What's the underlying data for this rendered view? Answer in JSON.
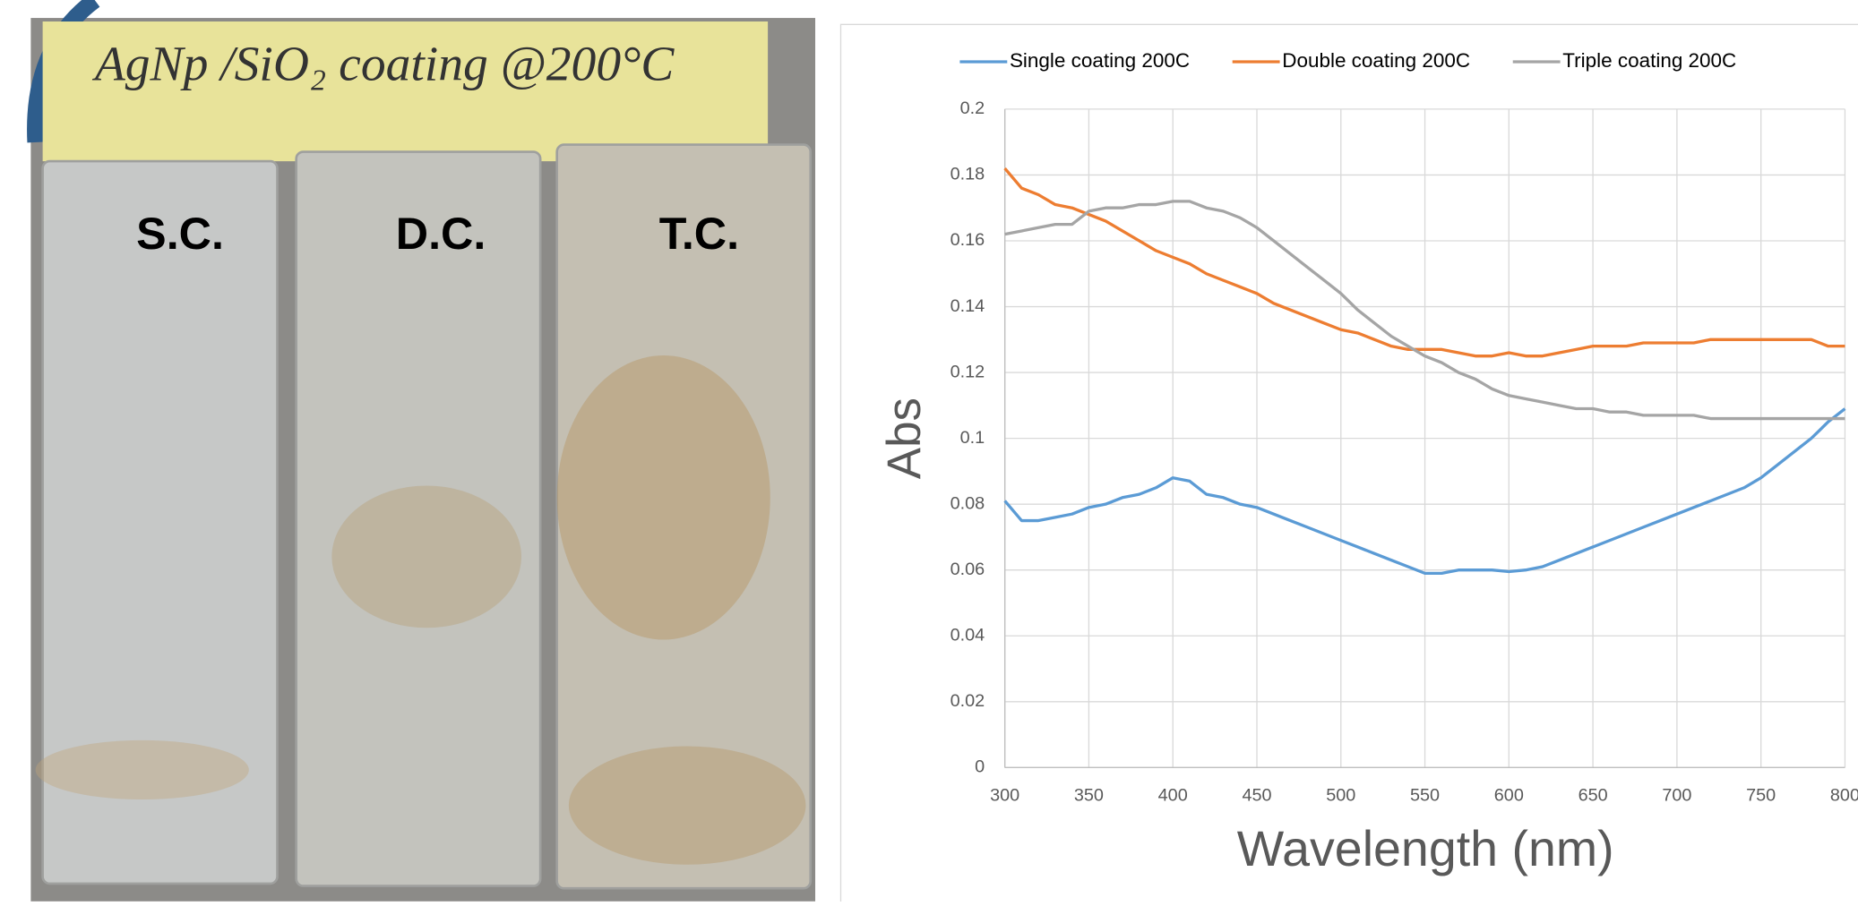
{
  "photo": {
    "label": "AgNp /SiO₂ coating @200°C",
    "slides": [
      "S.C.",
      "D.C.",
      "T.C."
    ]
  },
  "chart_data": {
    "type": "line",
    "xlabel": "Wavelength (nm)",
    "ylabel": "Abs",
    "x": [
      300,
      310,
      320,
      330,
      340,
      350,
      360,
      370,
      380,
      390,
      400,
      410,
      420,
      430,
      440,
      450,
      460,
      470,
      480,
      490,
      500,
      510,
      520,
      530,
      540,
      550,
      560,
      570,
      580,
      590,
      600,
      610,
      620,
      630,
      640,
      650,
      660,
      670,
      680,
      690,
      700,
      710,
      720,
      730,
      740,
      750,
      760,
      770,
      780,
      790,
      800
    ],
    "series": [
      {
        "name": "Single coating 200C",
        "color": "#5b9bd5",
        "values": [
          0.081,
          0.075,
          0.075,
          0.076,
          0.077,
          0.079,
          0.08,
          0.082,
          0.083,
          0.085,
          0.088,
          0.087,
          0.083,
          0.082,
          0.08,
          0.079,
          0.077,
          0.075,
          0.073,
          0.071,
          0.069,
          0.067,
          0.065,
          0.063,
          0.061,
          0.059,
          0.059,
          0.06,
          0.06,
          0.06,
          0.0595,
          0.06,
          0.061,
          0.063,
          0.065,
          0.067,
          0.069,
          0.071,
          0.073,
          0.075,
          0.077,
          0.079,
          0.081,
          0.083,
          0.085,
          0.088,
          0.092,
          0.096,
          0.1,
          0.105,
          0.109
        ]
      },
      {
        "name": "Double coating 200C",
        "color": "#ed7d31",
        "values": [
          0.182,
          0.176,
          0.174,
          0.171,
          0.17,
          0.168,
          0.166,
          0.163,
          0.16,
          0.157,
          0.155,
          0.153,
          0.15,
          0.148,
          0.146,
          0.144,
          0.141,
          0.139,
          0.137,
          0.135,
          0.133,
          0.132,
          0.13,
          0.128,
          0.127,
          0.127,
          0.127,
          0.126,
          0.125,
          0.125,
          0.126,
          0.125,
          0.125,
          0.126,
          0.127,
          0.128,
          0.128,
          0.128,
          0.129,
          0.129,
          0.129,
          0.129,
          0.13,
          0.13,
          0.13,
          0.13,
          0.13,
          0.13,
          0.13,
          0.128,
          0.128
        ]
      },
      {
        "name": "Triple coating 200C",
        "color": "#a5a5a5",
        "values": [
          0.162,
          0.163,
          0.164,
          0.165,
          0.165,
          0.169,
          0.17,
          0.17,
          0.171,
          0.171,
          0.172,
          0.172,
          0.17,
          0.169,
          0.167,
          0.164,
          0.16,
          0.156,
          0.152,
          0.148,
          0.144,
          0.139,
          0.135,
          0.131,
          0.128,
          0.125,
          0.123,
          0.12,
          0.118,
          0.115,
          0.113,
          0.112,
          0.111,
          0.11,
          0.109,
          0.109,
          0.108,
          0.108,
          0.107,
          0.107,
          0.107,
          0.107,
          0.106,
          0.106,
          0.106,
          0.106,
          0.106,
          0.106,
          0.106,
          0.106,
          0.106
        ]
      }
    ],
    "xlim": [
      300,
      800
    ],
    "xticks": [
      300,
      350,
      400,
      450,
      500,
      550,
      600,
      650,
      700,
      750,
      800
    ],
    "ylim": [
      0,
      0.2
    ],
    "yticks": [
      0,
      0.02,
      0.04,
      0.06,
      0.08,
      0.1,
      0.12,
      0.14,
      0.16,
      0.18,
      0.2
    ],
    "grid": true,
    "legend": "top"
  }
}
